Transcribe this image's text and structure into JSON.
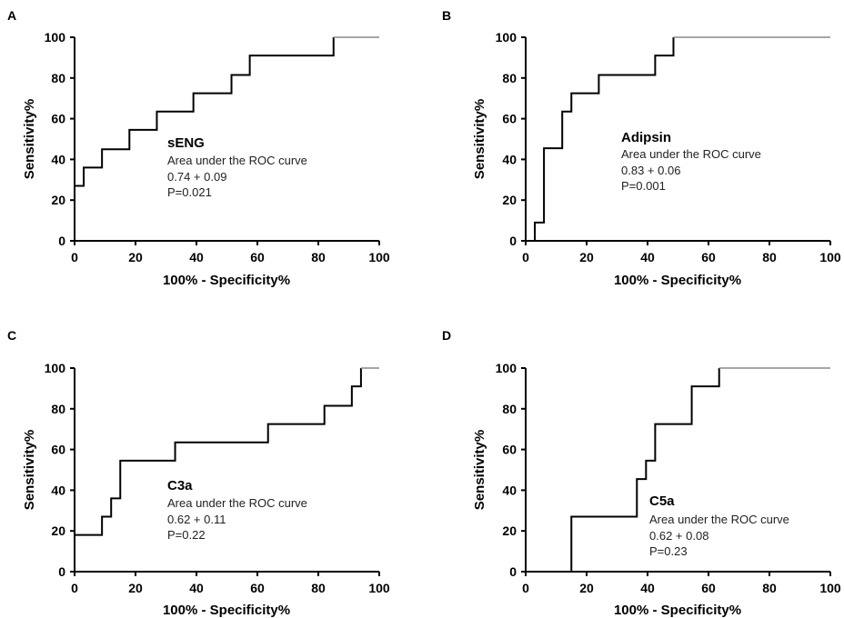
{
  "chart_data": [
    {
      "type": "line",
      "panel": "A",
      "marker": "sEng",
      "annotation": {
        "name": "sENG",
        "label": "Area under the ROC curve",
        "auc": "0.74 + 0.09",
        "p": "P=0.021"
      },
      "xlabel": "100% - Specificity%",
      "ylabel": "Sensitivity%",
      "xlim": [
        0,
        100
      ],
      "ylim": [
        0,
        100
      ],
      "xticks": [
        0,
        20,
        40,
        60,
        80,
        100
      ],
      "yticks": [
        0,
        20,
        40,
        60,
        80,
        100
      ],
      "grid": false,
      "series": [
        {
          "x": [
            0,
            0,
            3,
            3,
            9,
            9,
            18,
            18,
            27,
            27,
            39,
            39,
            51.5,
            51.5,
            57.5,
            57.5,
            85,
            85,
            100
          ],
          "y": [
            0,
            27,
            27,
            36,
            36,
            45,
            45,
            54.5,
            54.5,
            63.5,
            63.5,
            72.5,
            72.5,
            81.5,
            81.5,
            91,
            91,
            100,
            100
          ]
        }
      ]
    },
    {
      "type": "line",
      "panel": "B",
      "marker": "Adipsin",
      "annotation": {
        "name": "Adipsin",
        "label": "Area under the ROC curve",
        "auc": "0.83 + 0.06",
        "p": "P=0.001"
      },
      "xlabel": "100% - Specificity%",
      "ylabel": "Sensitivity%",
      "xlim": [
        0,
        100
      ],
      "ylim": [
        0,
        100
      ],
      "xticks": [
        0,
        20,
        40,
        60,
        80,
        100
      ],
      "yticks": [
        0,
        20,
        40,
        60,
        80,
        100
      ],
      "grid": false,
      "series": [
        {
          "x": [
            0,
            3,
            3,
            6,
            6,
            12,
            12,
            15,
            15,
            24,
            24,
            42.5,
            42.5,
            48.5,
            48.5,
            100
          ],
          "y": [
            0,
            0,
            9,
            9,
            45.5,
            45.5,
            63.5,
            63.5,
            72.5,
            72.5,
            81.5,
            81.5,
            91,
            91,
            100,
            100
          ]
        }
      ]
    },
    {
      "type": "line",
      "panel": "C",
      "marker": "C3a",
      "annotation": {
        "name": "C3a",
        "label": "Area under the ROC curve",
        "auc": "0.62 + 0.11",
        "p": "P=0.22"
      },
      "xlabel": "100% - Specificity%",
      "ylabel": "Sensitivity%",
      "xlim": [
        0,
        100
      ],
      "ylim": [
        0,
        100
      ],
      "xticks": [
        0,
        20,
        40,
        60,
        80,
        100
      ],
      "yticks": [
        0,
        20,
        40,
        60,
        80,
        100
      ],
      "grid": false,
      "series": [
        {
          "x": [
            0,
            0,
            9,
            9,
            12,
            12,
            15,
            15,
            33,
            33,
            63.5,
            63.5,
            82,
            82,
            91,
            91,
            94,
            94,
            100
          ],
          "y": [
            0,
            18,
            18,
            27,
            27,
            36,
            36,
            54.5,
            54.5,
            63.5,
            63.5,
            72.5,
            72.5,
            81.5,
            81.5,
            91,
            91,
            100,
            100
          ]
        }
      ]
    },
    {
      "type": "line",
      "panel": "D",
      "marker": "C5a",
      "annotation": {
        "name": "C5a",
        "label": "Area under the ROC curve",
        "auc": "0.62 + 0.08",
        "p": "P=0.23"
      },
      "xlabel": "100% - Specificity%",
      "ylabel": "Sensitivity%",
      "xlim": [
        0,
        100
      ],
      "ylim": [
        0,
        100
      ],
      "xticks": [
        0,
        20,
        40,
        60,
        80,
        100
      ],
      "yticks": [
        0,
        20,
        40,
        60,
        80,
        100
      ],
      "grid": false,
      "series": [
        {
          "x": [
            0,
            15,
            15,
            36.5,
            36.5,
            39.5,
            39.5,
            42.5,
            42.5,
            54.5,
            54.5,
            63.5,
            63.5,
            100
          ],
          "y": [
            0,
            0,
            27,
            27,
            45.5,
            45.5,
            54.5,
            54.5,
            72.5,
            72.5,
            91,
            91,
            100,
            100
          ]
        }
      ]
    }
  ]
}
